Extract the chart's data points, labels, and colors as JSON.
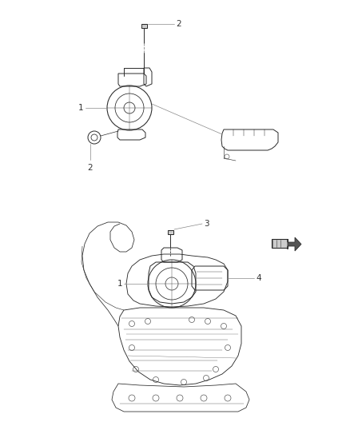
{
  "bg_color": "#ffffff",
  "line_color": "#2a2a2a",
  "label_color": "#333333",
  "figsize": [
    4.38,
    5.33
  ],
  "dpi": 100,
  "labels": {
    "label_2a": "2",
    "label_1a": "1",
    "label_2b": "2",
    "label_3": "3",
    "label_1b": "1",
    "label_4": "4"
  },
  "label_fontsize": 7.5,
  "lw": 0.7
}
